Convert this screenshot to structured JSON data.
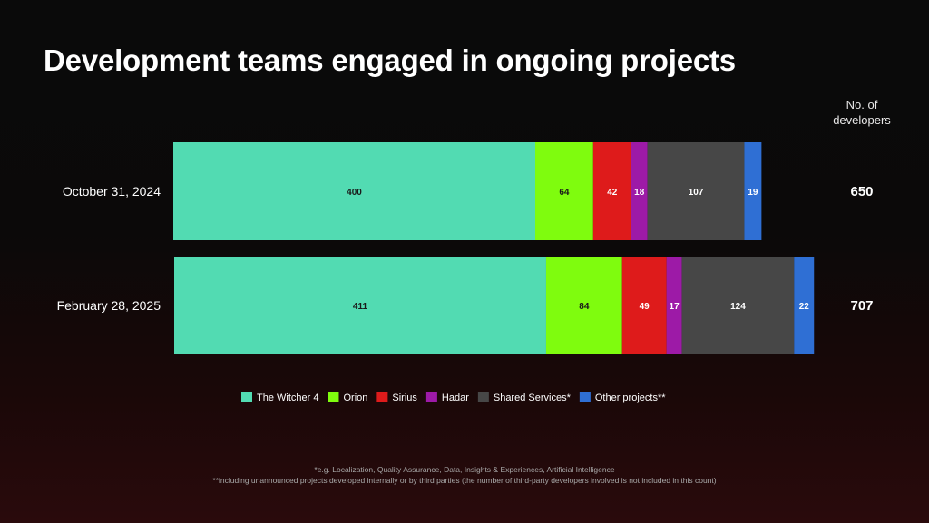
{
  "title": "Development teams engaged in ongoing projects",
  "total_header": {
    "line1": "No. of",
    "line2": "developers"
  },
  "footnotes": [
    "*e.g. Localization, Quality Assurance, Data, Insights & Experiences, Artificial Intelligence",
    "**including unannounced projects developed internally or by third parties (the number of third-party developers involved is not included in this count)"
  ],
  "colors": {
    "text_dark": "#1a1a1a",
    "text_light": "#ffffff"
  },
  "chart_data": {
    "type": "bar",
    "orientation": "horizontal",
    "stacked": true,
    "categories": [
      "October 31, 2024",
      "February 28, 2025"
    ],
    "series": [
      {
        "name": "The Witcher 4",
        "values": [
          400,
          411
        ],
        "color": "#52dbb2",
        "label_color": "#1a1a1a"
      },
      {
        "name": "Orion",
        "values": [
          64,
          84
        ],
        "color": "#7ffc0e",
        "label_color": "#1a1a1a"
      },
      {
        "name": "Sirius",
        "values": [
          42,
          49
        ],
        "color": "#de1b1b",
        "label_color": "#ffffff"
      },
      {
        "name": "Hadar",
        "values": [
          18,
          17
        ],
        "color": "#9d1aa7",
        "label_color": "#ffffff"
      },
      {
        "name": "Shared Services*",
        "values": [
          107,
          124
        ],
        "color": "#474747",
        "label_color": "#ffffff"
      },
      {
        "name": "Other projects**",
        "values": [
          19,
          22
        ],
        "color": "#2f6fd4",
        "label_color": "#ffffff"
      }
    ],
    "totals": [
      "650",
      "707"
    ],
    "legend_position": "bottom-center",
    "grid": false
  }
}
